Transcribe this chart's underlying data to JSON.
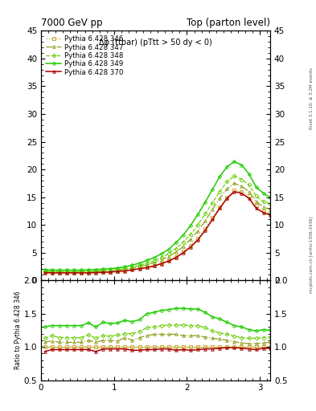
{
  "title_left": "7000 GeV pp",
  "title_right": "Top (parton level)",
  "annotation": "Δφ (ttbar) (pTtt > 50 dy < 0)",
  "right_label_top": "Rivet 3.1.10; ≥ 3.2M events",
  "right_label_bot": "mcplots.cern.ch [arXiv:1306.3436]",
  "ylabel_ratio": "Ratio to Pythia 6.428 346",
  "xlim": [
    0,
    3.14159
  ],
  "ylim_main": [
    0,
    45
  ],
  "ylim_ratio": [
    0.5,
    2.0
  ],
  "series": [
    {
      "label": "Pythia 6.428 346",
      "color": "#c8a832",
      "marker": "s",
      "linestyle": ":",
      "linewidth": 0.9
    },
    {
      "label": "Pythia 6.428 347",
      "color": "#90a020",
      "marker": "^",
      "linestyle": "-.",
      "linewidth": 0.9
    },
    {
      "label": "Pythia 6.428 348",
      "color": "#70d010",
      "marker": "D",
      "linestyle": "--",
      "linewidth": 0.9
    },
    {
      "label": "Pythia 6.428 349",
      "color": "#20cc00",
      "marker": "o",
      "linestyle": "-",
      "linewidth": 1.1
    },
    {
      "label": "Pythia 6.428 370",
      "color": "#aa0000",
      "marker": "^",
      "linestyle": "-",
      "linewidth": 1.1
    }
  ],
  "x_values": [
    0.05,
    0.15,
    0.25,
    0.35,
    0.45,
    0.55,
    0.65,
    0.75,
    0.85,
    0.95,
    1.05,
    1.15,
    1.25,
    1.35,
    1.45,
    1.55,
    1.65,
    1.75,
    1.85,
    1.95,
    2.05,
    2.15,
    2.25,
    2.35,
    2.45,
    2.55,
    2.65,
    2.75,
    2.85,
    2.95,
    3.05,
    3.14
  ],
  "y_values": {
    "346": [
      1.5,
      1.4,
      1.4,
      1.4,
      1.4,
      1.4,
      1.4,
      1.5,
      1.5,
      1.55,
      1.65,
      1.75,
      2.0,
      2.2,
      2.4,
      2.7,
      3.1,
      3.6,
      4.3,
      5.2,
      6.3,
      7.6,
      9.3,
      11.3,
      13.2,
      15.0,
      16.2,
      16.0,
      15.2,
      13.5,
      12.5,
      12.0
    ],
    "347": [
      1.6,
      1.55,
      1.5,
      1.5,
      1.5,
      1.5,
      1.55,
      1.6,
      1.65,
      1.7,
      1.8,
      2.0,
      2.2,
      2.5,
      2.8,
      3.2,
      3.7,
      4.3,
      5.1,
      6.1,
      7.4,
      8.9,
      10.7,
      12.8,
      14.8,
      16.5,
      17.5,
      17.0,
      16.0,
      14.2,
      13.2,
      12.8
    ],
    "348": [
      1.7,
      1.65,
      1.6,
      1.6,
      1.6,
      1.6,
      1.65,
      1.7,
      1.75,
      1.8,
      1.95,
      2.1,
      2.4,
      2.7,
      3.1,
      3.5,
      4.1,
      4.8,
      5.7,
      6.9,
      8.3,
      10.0,
      12.0,
      14.0,
      16.0,
      17.8,
      18.8,
      18.2,
      17.2,
      15.2,
      14.2,
      13.8
    ],
    "349": [
      1.95,
      1.85,
      1.85,
      1.85,
      1.85,
      1.85,
      1.9,
      1.95,
      2.05,
      2.1,
      2.25,
      2.45,
      2.75,
      3.1,
      3.6,
      4.1,
      4.8,
      5.6,
      6.8,
      8.2,
      9.9,
      11.9,
      14.1,
      16.4,
      18.7,
      20.5,
      21.4,
      20.8,
      19.2,
      16.8,
      15.7,
      15.0
    ],
    "370": [
      1.4,
      1.35,
      1.35,
      1.35,
      1.35,
      1.35,
      1.35,
      1.4,
      1.45,
      1.5,
      1.6,
      1.7,
      1.9,
      2.1,
      2.3,
      2.6,
      3.0,
      3.5,
      4.1,
      5.0,
      6.0,
      7.3,
      9.0,
      11.0,
      13.0,
      14.8,
      16.0,
      15.7,
      14.8,
      13.0,
      12.2,
      11.8
    ]
  },
  "ratio_values": {
    "346": [
      1.0,
      1.0,
      1.0,
      1.0,
      1.0,
      1.0,
      1.0,
      1.0,
      1.0,
      1.0,
      1.0,
      1.0,
      1.0,
      1.0,
      1.0,
      1.0,
      1.0,
      1.0,
      1.0,
      1.0,
      1.0,
      1.0,
      1.0,
      1.0,
      1.0,
      1.0,
      1.0,
      1.0,
      1.0,
      1.0,
      1.0,
      1.0
    ],
    "347": [
      1.07,
      1.09,
      1.07,
      1.07,
      1.07,
      1.07,
      1.1,
      1.07,
      1.1,
      1.1,
      1.09,
      1.14,
      1.1,
      1.14,
      1.17,
      1.19,
      1.19,
      1.19,
      1.19,
      1.17,
      1.17,
      1.17,
      1.15,
      1.13,
      1.12,
      1.1,
      1.08,
      1.06,
      1.05,
      1.05,
      1.06,
      1.07
    ],
    "348": [
      1.13,
      1.17,
      1.14,
      1.14,
      1.14,
      1.14,
      1.18,
      1.13,
      1.17,
      1.16,
      1.18,
      1.2,
      1.2,
      1.23,
      1.29,
      1.3,
      1.32,
      1.33,
      1.33,
      1.33,
      1.32,
      1.32,
      1.29,
      1.24,
      1.21,
      1.19,
      1.16,
      1.14,
      1.13,
      1.13,
      1.14,
      1.15
    ],
    "349": [
      1.3,
      1.32,
      1.32,
      1.32,
      1.32,
      1.32,
      1.36,
      1.3,
      1.37,
      1.35,
      1.36,
      1.4,
      1.38,
      1.41,
      1.5,
      1.52,
      1.55,
      1.56,
      1.58,
      1.58,
      1.57,
      1.57,
      1.52,
      1.45,
      1.42,
      1.37,
      1.32,
      1.3,
      1.26,
      1.24,
      1.26,
      1.25
    ],
    "370": [
      0.93,
      0.96,
      0.96,
      0.96,
      0.96,
      0.96,
      0.96,
      0.93,
      0.97,
      0.97,
      0.97,
      0.97,
      0.95,
      0.95,
      0.96,
      0.96,
      0.97,
      0.97,
      0.95,
      0.96,
      0.95,
      0.96,
      0.97,
      0.97,
      0.98,
      0.99,
      0.99,
      0.98,
      0.97,
      0.96,
      0.98,
      0.98
    ]
  }
}
